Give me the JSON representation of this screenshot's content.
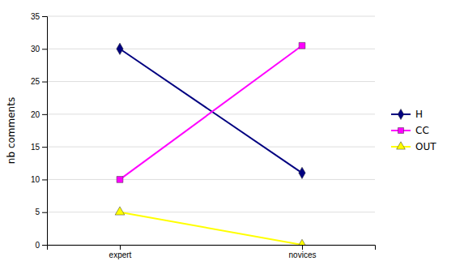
{
  "chart_data": {
    "type": "line",
    "categories": [
      "expert",
      "novices"
    ],
    "series": [
      {
        "name": "H",
        "color": "#000080",
        "marker": "diamond",
        "values": [
          30,
          11
        ]
      },
      {
        "name": "CC",
        "color": "#FF00FF",
        "marker": "square",
        "values": [
          10,
          30.5
        ]
      },
      {
        "name": "OUT",
        "color": "#FFFF00",
        "marker": "triangle",
        "values": [
          5,
          0
        ]
      }
    ],
    "y_label": "nb comments",
    "ylim": [
      0,
      35
    ],
    "yticks": [
      0,
      5,
      10,
      15,
      20,
      25,
      30,
      35
    ],
    "grid": true,
    "legend": "right"
  }
}
